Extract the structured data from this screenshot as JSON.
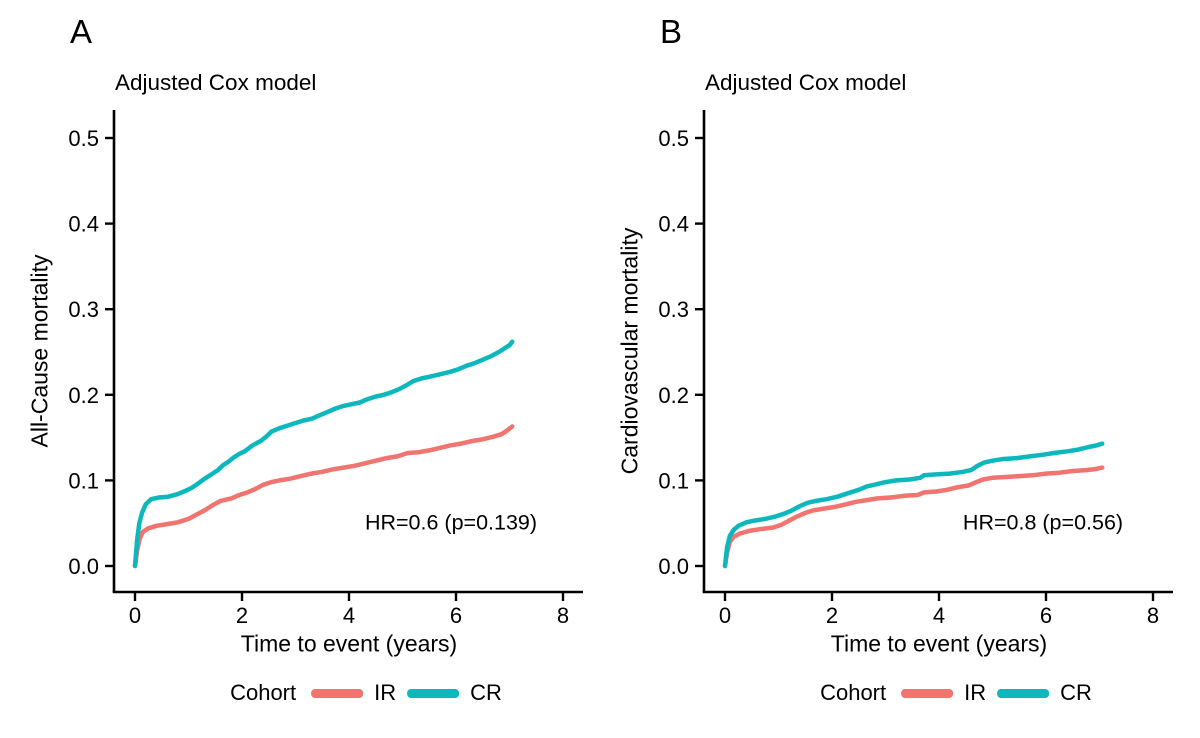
{
  "figure": {
    "background": "#ffffff",
    "text_color": "#000000",
    "axis_color": "#000000"
  },
  "legend": {
    "title": "Cohort",
    "items": [
      {
        "label": "IR",
        "color": "#F07470"
      },
      {
        "label": "CR",
        "color": "#0DB8BD"
      }
    ]
  },
  "chart_data": [
    {
      "type": "line",
      "panel_label": "A",
      "subtitle": "Adjusted Cox model",
      "xlabel": "Time to event (years)",
      "ylabel": "All-Cause mortality",
      "annotation": "HR=0.6 (p=0.139)",
      "xlim": [
        0,
        8
      ],
      "ylim": [
        0,
        0.5
      ],
      "x_ticks": [
        "0",
        "2",
        "4",
        "6",
        "8"
      ],
      "y_ticks": [
        "0.0",
        "0.1",
        "0.2",
        "0.3",
        "0.4",
        "0.5"
      ],
      "grid": false,
      "legend_position": "bottom",
      "series": [
        {
          "name": "IR",
          "color": "#F07470",
          "points": [
            [
              0,
              0
            ],
            [
              0.04,
              0.018
            ],
            [
              0.09,
              0.032
            ],
            [
              0.15,
              0.04
            ],
            [
              0.25,
              0.044
            ],
            [
              0.4,
              0.047
            ],
            [
              0.6,
              0.049
            ],
            [
              0.8,
              0.051
            ],
            [
              1.0,
              0.055
            ],
            [
              1.15,
              0.06
            ],
            [
              1.3,
              0.065
            ],
            [
              1.45,
              0.071
            ],
            [
              1.6,
              0.076
            ],
            [
              1.8,
              0.079
            ],
            [
              1.95,
              0.083
            ],
            [
              2.1,
              0.086
            ],
            [
              2.25,
              0.09
            ],
            [
              2.4,
              0.095
            ],
            [
              2.55,
              0.098
            ],
            [
              2.7,
              0.1
            ],
            [
              2.9,
              0.102
            ],
            [
              3.1,
              0.105
            ],
            [
              3.3,
              0.108
            ],
            [
              3.5,
              0.11
            ],
            [
              3.7,
              0.113
            ],
            [
              3.9,
              0.115
            ],
            [
              4.1,
              0.117
            ],
            [
              4.3,
              0.12
            ],
            [
              4.5,
              0.123
            ],
            [
              4.7,
              0.126
            ],
            [
              4.9,
              0.128
            ],
            [
              5.1,
              0.132
            ],
            [
              5.3,
              0.133
            ],
            [
              5.5,
              0.135
            ],
            [
              5.7,
              0.138
            ],
            [
              5.9,
              0.141
            ],
            [
              6.1,
              0.143
            ],
            [
              6.3,
              0.146
            ],
            [
              6.5,
              0.148
            ],
            [
              6.7,
              0.151
            ],
            [
              6.85,
              0.154
            ],
            [
              6.95,
              0.158
            ],
            [
              7.05,
              0.163
            ]
          ]
        },
        {
          "name": "CR",
          "color": "#0DB8BD",
          "points": [
            [
              0,
              0
            ],
            [
              0.04,
              0.03
            ],
            [
              0.08,
              0.05
            ],
            [
              0.13,
              0.062
            ],
            [
              0.2,
              0.072
            ],
            [
              0.3,
              0.078
            ],
            [
              0.45,
              0.08
            ],
            [
              0.62,
              0.081
            ],
            [
              0.8,
              0.084
            ],
            [
              0.95,
              0.088
            ],
            [
              1.05,
              0.091
            ],
            [
              1.15,
              0.095
            ],
            [
              1.3,
              0.102
            ],
            [
              1.45,
              0.108
            ],
            [
              1.55,
              0.112
            ],
            [
              1.65,
              0.118
            ],
            [
              1.75,
              0.122
            ],
            [
              1.85,
              0.127
            ],
            [
              1.95,
              0.131
            ],
            [
              2.05,
              0.134
            ],
            [
              2.2,
              0.141
            ],
            [
              2.35,
              0.146
            ],
            [
              2.45,
              0.151
            ],
            [
              2.55,
              0.157
            ],
            [
              2.7,
              0.161
            ],
            [
              2.85,
              0.164
            ],
            [
              3.0,
              0.167
            ],
            [
              3.15,
              0.17
            ],
            [
              3.3,
              0.172
            ],
            [
              3.45,
              0.176
            ],
            [
              3.6,
              0.18
            ],
            [
              3.75,
              0.184
            ],
            [
              3.9,
              0.187
            ],
            [
              4.05,
              0.189
            ],
            [
              4.2,
              0.191
            ],
            [
              4.35,
              0.195
            ],
            [
              4.5,
              0.198
            ],
            [
              4.65,
              0.2
            ],
            [
              4.8,
              0.203
            ],
            [
              4.95,
              0.207
            ],
            [
              5.1,
              0.212
            ],
            [
              5.2,
              0.216
            ],
            [
              5.35,
              0.219
            ],
            [
              5.5,
              0.221
            ],
            [
              5.7,
              0.224
            ],
            [
              5.9,
              0.227
            ],
            [
              6.05,
              0.23
            ],
            [
              6.2,
              0.234
            ],
            [
              6.35,
              0.237
            ],
            [
              6.5,
              0.241
            ],
            [
              6.65,
              0.245
            ],
            [
              6.8,
              0.25
            ],
            [
              6.9,
              0.254
            ],
            [
              7.0,
              0.258
            ],
            [
              7.05,
              0.262
            ]
          ]
        }
      ]
    },
    {
      "type": "line",
      "panel_label": "B",
      "subtitle": "Adjusted Cox model",
      "xlabel": "Time to event (years)",
      "ylabel": "Cardiovascular mortality",
      "annotation": "HR=0.8 (p=0.56)",
      "xlim": [
        0,
        8
      ],
      "ylim": [
        0,
        0.5
      ],
      "x_ticks": [
        "0",
        "2",
        "4",
        "6",
        "8"
      ],
      "y_ticks": [
        "0.0",
        "0.1",
        "0.2",
        "0.3",
        "0.4",
        "0.5"
      ],
      "grid": false,
      "legend_position": "bottom",
      "series": [
        {
          "name": "IR",
          "color": "#F07470",
          "points": [
            [
              0,
              0
            ],
            [
              0.04,
              0.016
            ],
            [
              0.09,
              0.028
            ],
            [
              0.16,
              0.034
            ],
            [
              0.28,
              0.038
            ],
            [
              0.45,
              0.041
            ],
            [
              0.65,
              0.043
            ],
            [
              0.9,
              0.045
            ],
            [
              1.05,
              0.048
            ],
            [
              1.2,
              0.053
            ],
            [
              1.35,
              0.058
            ],
            [
              1.5,
              0.062
            ],
            [
              1.65,
              0.065
            ],
            [
              1.85,
              0.067
            ],
            [
              2.05,
              0.069
            ],
            [
              2.25,
              0.072
            ],
            [
              2.45,
              0.075
            ],
            [
              2.65,
              0.077
            ],
            [
              2.85,
              0.079
            ],
            [
              3.1,
              0.08
            ],
            [
              3.35,
              0.082
            ],
            [
              3.6,
              0.083
            ],
            [
              3.72,
              0.086
            ],
            [
              3.95,
              0.087
            ],
            [
              4.15,
              0.089
            ],
            [
              4.35,
              0.092
            ],
            [
              4.55,
              0.094
            ],
            [
              4.7,
              0.098
            ],
            [
              4.82,
              0.101
            ],
            [
              5.0,
              0.103
            ],
            [
              5.25,
              0.104
            ],
            [
              5.5,
              0.105
            ],
            [
              5.75,
              0.106
            ],
            [
              6.0,
              0.108
            ],
            [
              6.25,
              0.109
            ],
            [
              6.5,
              0.111
            ],
            [
              6.75,
              0.112
            ],
            [
              6.9,
              0.113
            ],
            [
              7.05,
              0.115
            ]
          ]
        },
        {
          "name": "CR",
          "color": "#0DB8BD",
          "points": [
            [
              0,
              0
            ],
            [
              0.04,
              0.022
            ],
            [
              0.09,
              0.035
            ],
            [
              0.16,
              0.042
            ],
            [
              0.25,
              0.047
            ],
            [
              0.4,
              0.051
            ],
            [
              0.55,
              0.053
            ],
            [
              0.75,
              0.055
            ],
            [
              0.95,
              0.058
            ],
            [
              1.1,
              0.061
            ],
            [
              1.25,
              0.065
            ],
            [
              1.4,
              0.07
            ],
            [
              1.55,
              0.074
            ],
            [
              1.7,
              0.076
            ],
            [
              1.9,
              0.078
            ],
            [
              2.1,
              0.081
            ],
            [
              2.3,
              0.085
            ],
            [
              2.5,
              0.089
            ],
            [
              2.65,
              0.093
            ],
            [
              2.8,
              0.095
            ],
            [
              3.0,
              0.098
            ],
            [
              3.2,
              0.1
            ],
            [
              3.45,
              0.101
            ],
            [
              3.65,
              0.103
            ],
            [
              3.72,
              0.106
            ],
            [
              3.95,
              0.107
            ],
            [
              4.2,
              0.108
            ],
            [
              4.45,
              0.11
            ],
            [
              4.6,
              0.112
            ],
            [
              4.72,
              0.117
            ],
            [
              4.85,
              0.121
            ],
            [
              5.0,
              0.123
            ],
            [
              5.2,
              0.125
            ],
            [
              5.45,
              0.126
            ],
            [
              5.7,
              0.128
            ],
            [
              5.95,
              0.13
            ],
            [
              6.15,
              0.132
            ],
            [
              6.4,
              0.134
            ],
            [
              6.6,
              0.136
            ],
            [
              6.8,
              0.139
            ],
            [
              6.95,
              0.141
            ],
            [
              7.05,
              0.143
            ]
          ]
        }
      ]
    }
  ]
}
